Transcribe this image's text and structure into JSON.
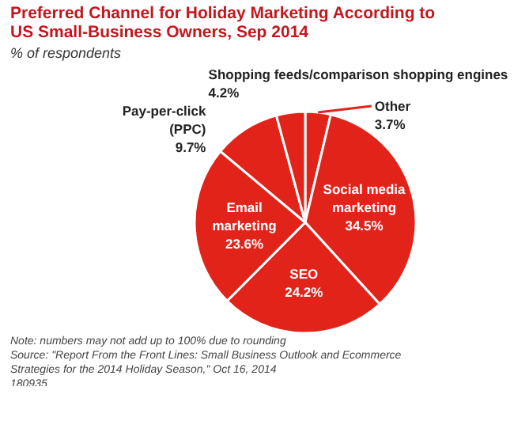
{
  "chart_data": {
    "type": "pie",
    "title": "Preferred Channel for Holiday Marketing According to\nUS Small-Business Owners, Sep 2014",
    "subtitle": "% of respondents",
    "categories": [
      "Other",
      "Social media marketing",
      "SEO",
      "Email marketing",
      "Pay-per-click\n(PPC)",
      "Shopping feeds/comparison shopping engines"
    ],
    "values": [
      3.7,
      34.5,
      24.2,
      23.6,
      9.7,
      4.2
    ],
    "value_labels": [
      "3.7%",
      "34.5%",
      "24.2%",
      "23.6%",
      "9.7%",
      "4.2%"
    ],
    "colors": [
      "#e2231a",
      "#e2231a",
      "#e2231a",
      "#e2231a",
      "#e2231a",
      "#e2231a"
    ],
    "annotations": [
      "Note: numbers may not add up to 100% due to rounding",
      "Source: \"Report From the Front Lines: Small Business Outlook and Ecommerce Strategies for the 2014 Holiday Season,\" Oct 16, 2014",
      "180935"
    ]
  }
}
